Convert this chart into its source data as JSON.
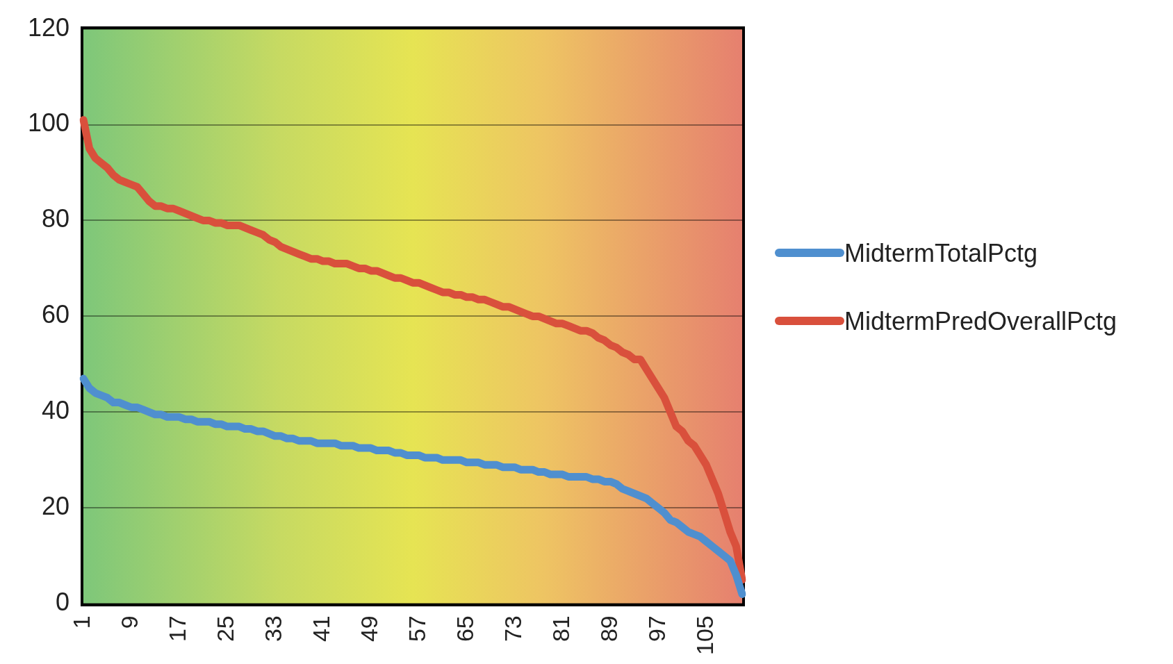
{
  "chart_data": {
    "type": "line",
    "categories": [
      "1",
      null,
      null,
      null,
      null,
      null,
      null,
      null,
      "9",
      null,
      null,
      null,
      null,
      null,
      null,
      null,
      "17",
      null,
      null,
      null,
      null,
      null,
      null,
      null,
      "25",
      null,
      null,
      null,
      null,
      null,
      null,
      null,
      "33",
      null,
      null,
      null,
      null,
      null,
      null,
      null,
      "41",
      null,
      null,
      null,
      null,
      null,
      null,
      null,
      "49",
      null,
      null,
      null,
      null,
      null,
      null,
      null,
      "57",
      null,
      null,
      null,
      null,
      null,
      null,
      null,
      "65",
      null,
      null,
      null,
      null,
      null,
      null,
      null,
      "73",
      null,
      null,
      null,
      null,
      null,
      null,
      null,
      "81",
      null,
      null,
      null,
      null,
      null,
      null,
      null,
      "89",
      null,
      null,
      null,
      null,
      null,
      null,
      null,
      "97",
      null,
      null,
      null,
      null,
      null,
      null,
      null,
      "105",
      null,
      null,
      null,
      null,
      null,
      null
    ],
    "series": [
      {
        "name": "MidtermTotalPctg",
        "color": "#4f8fcf",
        "values": [
          47,
          45,
          44,
          43.5,
          43,
          42,
          42,
          41.5,
          41,
          41,
          40.5,
          40,
          39.5,
          39.5,
          39,
          39,
          39,
          38.5,
          38.5,
          38,
          38,
          38,
          37.5,
          37.5,
          37,
          37,
          37,
          36.5,
          36.5,
          36,
          36,
          35.5,
          35,
          35,
          34.5,
          34.5,
          34,
          34,
          34,
          33.5,
          33.5,
          33.5,
          33.5,
          33,
          33,
          33,
          32.5,
          32.5,
          32.5,
          32,
          32,
          32,
          31.5,
          31.5,
          31,
          31,
          31,
          30.5,
          30.5,
          30.5,
          30,
          30,
          30,
          30,
          29.5,
          29.5,
          29.5,
          29,
          29,
          29,
          28.5,
          28.5,
          28.5,
          28,
          28,
          28,
          27.5,
          27.5,
          27,
          27,
          27,
          26.5,
          26.5,
          26.5,
          26.5,
          26,
          26,
          25.5,
          25.5,
          25,
          24,
          23.5,
          23,
          22.5,
          22,
          21,
          20,
          19,
          17.5,
          17,
          16,
          15,
          14.5,
          14,
          13,
          12,
          11,
          10,
          9,
          6,
          2
        ]
      },
      {
        "name": "MidtermPredOverallPctg",
        "color": "#d9503c",
        "values": [
          101,
          95,
          93,
          92,
          91,
          89.5,
          88.5,
          88,
          87.5,
          87,
          85.5,
          84,
          83,
          83,
          82.5,
          82.5,
          82,
          81.5,
          81,
          80.5,
          80,
          80,
          79.5,
          79.5,
          79,
          79,
          79,
          78.5,
          78,
          77.5,
          77,
          76,
          75.5,
          74.5,
          74,
          73.5,
          73,
          72.5,
          72,
          72,
          71.5,
          71.5,
          71,
          71,
          71,
          70.5,
          70,
          70,
          69.5,
          69.5,
          69,
          68.5,
          68,
          68,
          67.5,
          67,
          67,
          66.5,
          66,
          65.5,
          65,
          65,
          64.5,
          64.5,
          64,
          64,
          63.5,
          63.5,
          63,
          62.5,
          62,
          62,
          61.5,
          61,
          60.5,
          60,
          60,
          59.5,
          59,
          58.5,
          58.5,
          58,
          57.5,
          57,
          57,
          56.5,
          55.5,
          55,
          54,
          53.5,
          52.5,
          52,
          51,
          51,
          49,
          47,
          45,
          43,
          40,
          37,
          36,
          34,
          33,
          31,
          29,
          26,
          23,
          19,
          15,
          12,
          5
        ]
      }
    ],
    "ylim": [
      0,
      120
    ],
    "yticks": [
      0,
      20,
      40,
      60,
      80,
      100,
      120
    ],
    "grid": "y",
    "legend": "right"
  }
}
